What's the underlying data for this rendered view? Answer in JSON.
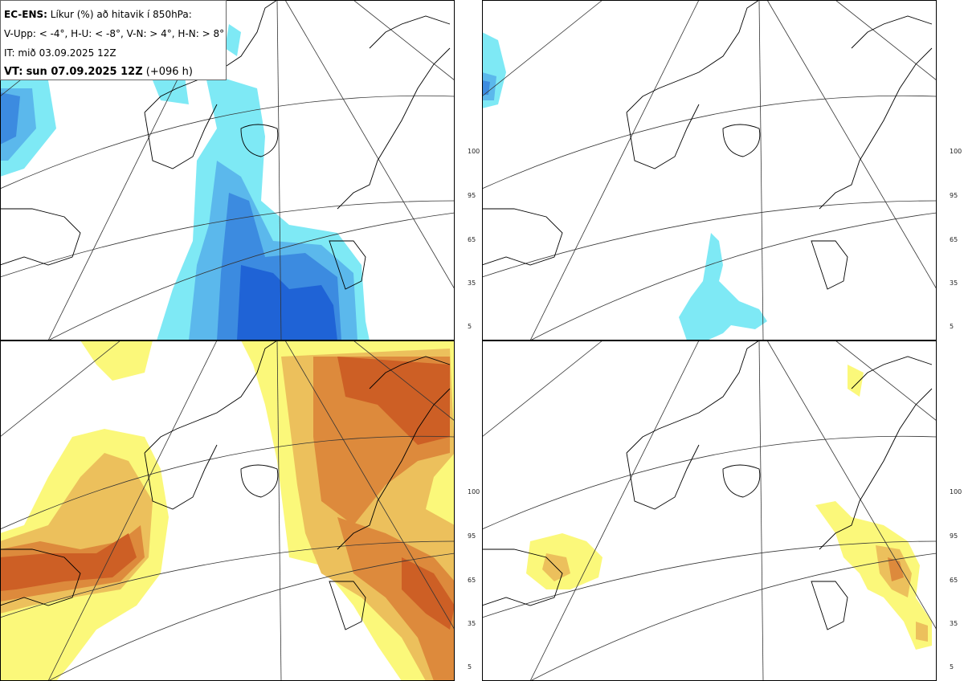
{
  "header": {
    "product": "EC-ENS:",
    "title": "Líkur (%) að hitavik í 850hPa:",
    "thresholds": "V-Upp: < -4°, H-U: < -8°, V-N: > 4°, H-N: > 8°",
    "issue_time": "IT: mið 03.09.2025 12Z",
    "valid_prefix": "VT:",
    "valid_time": "sun 07.09.2025 12Z",
    "lead": "(+096 h)"
  },
  "colorbars": {
    "cold": {
      "ticks": [
        "100",
        "95",
        "65",
        "35",
        "5"
      ],
      "colors": [
        "#1f63d6",
        "#3c8be0",
        "#5bb8ec",
        "#7ee9f5"
      ]
    },
    "warm": {
      "ticks": [
        "100",
        "95",
        "65",
        "35",
        "5"
      ],
      "colors": [
        "#cd5f25",
        "#dd8a3c",
        "#ecc05c",
        "#fbf87a"
      ]
    }
  },
  "panels": [
    {
      "id": "V-Upp",
      "scheme": "cold"
    },
    {
      "id": "H-U",
      "scheme": "cold"
    },
    {
      "id": "V-N",
      "scheme": "warm"
    },
    {
      "id": "H-N",
      "scheme": "warm"
    }
  ]
}
